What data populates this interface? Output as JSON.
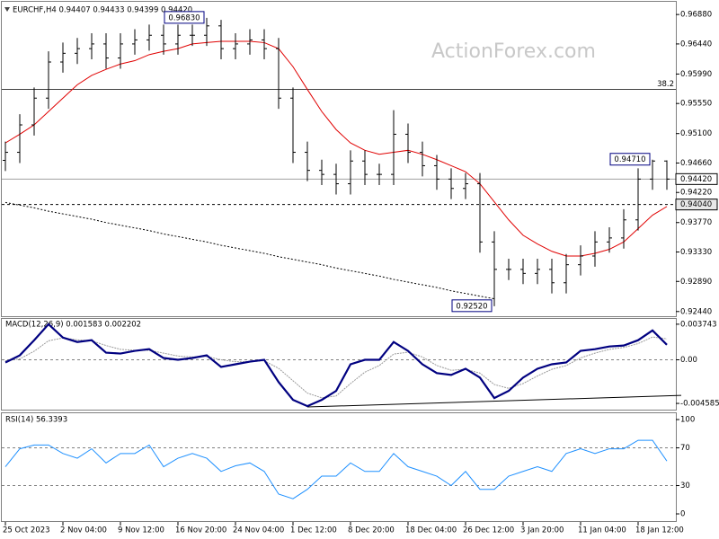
{
  "chart_data": [
    {
      "type": "ohlc",
      "title": "EURCHF,H4 0.94407 0.94433 0.94399 0.94420",
      "watermark": "ActionForex.com",
      "color": "#000000",
      "open": [
        0.947,
        0.9482,
        0.9523,
        0.9563,
        0.9617,
        0.963,
        0.9637,
        0.9644,
        0.9623,
        0.9644,
        0.965,
        0.9657,
        0.9644,
        0.9657,
        0.9657,
        0.9671,
        0.9637,
        0.9644,
        0.965,
        0.9637,
        0.9563,
        0.9482,
        0.9455,
        0.9449,
        0.9435,
        0.9469,
        0.9449,
        0.9449,
        0.9509,
        0.9482,
        0.9462,
        0.9442,
        0.9428,
        0.9435,
        0.9348,
        0.9307,
        0.9307,
        0.9301,
        0.9307,
        0.9287,
        0.9314,
        0.9327,
        0.9348,
        0.9354,
        0.9381,
        0.9442,
        0.9469
      ],
      "high": [
        0.9498,
        0.9539,
        0.9579,
        0.9633,
        0.9646,
        0.9653,
        0.966,
        0.966,
        0.966,
        0.9666,
        0.9673,
        0.9673,
        0.9673,
        0.9673,
        0.9683,
        0.968,
        0.966,
        0.9666,
        0.9666,
        0.9653,
        0.9579,
        0.9498,
        0.9471,
        0.9465,
        0.9485,
        0.9485,
        0.9465,
        0.9545,
        0.9525,
        0.9498,
        0.9478,
        0.9458,
        0.9451,
        0.9451,
        0.9364,
        0.9323,
        0.9323,
        0.9323,
        0.9323,
        0.933,
        0.9343,
        0.9364,
        0.937,
        0.9397,
        0.9458,
        0.9471,
        0.947
      ],
      "low": [
        0.9454,
        0.9466,
        0.9507,
        0.9547,
        0.9601,
        0.9614,
        0.9621,
        0.9607,
        0.9607,
        0.9628,
        0.9634,
        0.9628,
        0.9628,
        0.9641,
        0.9641,
        0.9621,
        0.9621,
        0.9628,
        0.9621,
        0.9547,
        0.9466,
        0.9439,
        0.9433,
        0.9419,
        0.9419,
        0.9433,
        0.9433,
        0.9433,
        0.9466,
        0.9446,
        0.9426,
        0.9412,
        0.9412,
        0.9332,
        0.9252,
        0.9291,
        0.9285,
        0.9285,
        0.9271,
        0.9271,
        0.9298,
        0.9311,
        0.9332,
        0.9338,
        0.9365,
        0.9426,
        0.9426
      ],
      "close": [
        0.9482,
        0.9523,
        0.9563,
        0.9617,
        0.963,
        0.9637,
        0.9644,
        0.9623,
        0.9644,
        0.965,
        0.9657,
        0.9644,
        0.9657,
        0.9657,
        0.9671,
        0.9637,
        0.9644,
        0.965,
        0.9637,
        0.9563,
        0.9482,
        0.9455,
        0.9449,
        0.9435,
        0.9469,
        0.9449,
        0.9449,
        0.9509,
        0.9482,
        0.9462,
        0.9442,
        0.9428,
        0.9435,
        0.9348,
        0.9307,
        0.9307,
        0.9301,
        0.9307,
        0.9287,
        0.9314,
        0.9327,
        0.9348,
        0.9354,
        0.9381,
        0.9442,
        0.9469,
        0.9442
      ],
      "lines": [
        {
          "color": "#e00000",
          "dashed": false,
          "values": [
            0.9496,
            0.9509,
            0.9523,
            0.9543,
            0.9563,
            0.9583,
            0.9597,
            0.9606,
            0.9614,
            0.9619,
            0.9628,
            0.9633,
            0.9637,
            0.9644,
            0.9646,
            0.9648,
            0.9648,
            0.9648,
            0.9646,
            0.9637,
            0.961,
            0.9576,
            0.9543,
            0.9516,
            0.9496,
            0.9485,
            0.9479,
            0.9482,
            0.9485,
            0.9479,
            0.9471,
            0.9462,
            0.9453,
            0.9435,
            0.9408,
            0.9381,
            0.9358,
            0.9345,
            0.9334,
            0.9327,
            0.9327,
            0.9331,
            0.9337,
            0.9348,
            0.9368,
            0.9388,
            0.9401
          ]
        },
        {
          "color": "#000000",
          "dashed": true,
          "values": [
            0.9407,
            0.9403,
            0.9399,
            0.9394,
            0.939,
            0.9386,
            0.9382,
            0.9377,
            0.9373,
            0.9369,
            0.9365,
            0.936,
            0.9356,
            0.9352,
            0.9348,
            0.9343,
            0.9339,
            0.9335,
            0.9331,
            0.9326,
            0.9322,
            0.9318,
            0.9314,
            0.9309,
            0.9305,
            0.9301,
            0.9297,
            0.9292,
            0.9288,
            0.9284,
            0.928,
            0.9275,
            0.9271,
            0.9267,
            0.9263,
            null,
            null,
            null,
            null,
            null,
            null,
            null,
            null,
            null,
            null,
            null,
            null
          ]
        }
      ],
      "ylim": [
        0.9237,
        0.9707
      ],
      "yticks": [
        {
          "value": 0.9688,
          "label": "0.96880"
        },
        {
          "value": 0.9644,
          "label": "0.96440"
        },
        {
          "value": 0.9599,
          "label": "0.95990"
        },
        {
          "value": 0.9555,
          "label": "0.95550"
        },
        {
          "value": 0.951,
          "label": "0.95100"
        },
        {
          "value": 0.9466,
          "label": "0.94660"
        },
        {
          "value": 0.9422,
          "label": "0.94220"
        },
        {
          "value": 0.9377,
          "label": "0.93770"
        },
        {
          "value": 0.9333,
          "label": "0.93330"
        },
        {
          "value": 0.9289,
          "label": "0.92890"
        },
        {
          "value": 0.9244,
          "label": "0.92440"
        }
      ],
      "levels": [
        {
          "value": 0.9576,
          "label": "38.2"
        }
      ],
      "price_markers": [
        {
          "value": 0.9442,
          "label": "0.94420",
          "dashed": false
        },
        {
          "value": 0.9404,
          "label": "0.94040",
          "dashed": true
        }
      ],
      "annotations": [
        {
          "x": 14,
          "value": 0.9683,
          "label": "0.96830"
        },
        {
          "x": 45,
          "value": 0.9471,
          "label": "0.94710"
        },
        {
          "x": 34,
          "value": 0.9252,
          "label": "0.92520"
        }
      ]
    },
    {
      "type": "macd",
      "title": "MACD(12,26,9) 0.001583 0.002202",
      "color": "#000080",
      "signal_color": "#9a9a9a",
      "values": [
        -0.00028,
        0.00047,
        0.00206,
        0.00374,
        0.00234,
        0.00187,
        0.00206,
        0.00075,
        0.00066,
        0.00094,
        0.00112,
        0.00019,
        0,
        0.00019,
        0.00047,
        -0.00075,
        -0.00047,
        -0.00019,
        0,
        -0.00234,
        -0.00421,
        -0.00487,
        -0.00421,
        -0.00327,
        -0.00047,
        0,
        0,
        0.00187,
        0.00094,
        -0.00047,
        -0.0014,
        -0.00159,
        -0.00094,
        -0.00187,
        -0.00402,
        -0.00327,
        -0.00187,
        -0.00094,
        -0.00047,
        -0.00028,
        0.00094,
        0.00112,
        0.0014,
        0.0015,
        0.00206,
        0.00309,
        0.00158
      ],
      "signal": [
        -0.0001,
        0.0001,
        0.0009,
        0.002,
        0.0023,
        0.0021,
        0.002,
        0.0015,
        0.0011,
        0.001,
        0.001,
        0.0007,
        0.0004,
        0.0003,
        0.00035,
        0,
        -0.0002,
        -0.0002,
        -0.0001,
        -0.0009,
        -0.0022,
        -0.0035,
        -0.004,
        -0.0038,
        -0.0025,
        -0.0013,
        -0.0006,
        0.0006,
        0.0008,
        0.0003,
        -0.0006,
        -0.0011,
        -0.001,
        -0.0014,
        -0.0026,
        -0.003,
        -0.0025,
        -0.0017,
        -0.001,
        -0.0006,
        0.0002,
        0.0007,
        0.0011,
        0.0013,
        0.0017,
        0.0024,
        0.0022
      ],
      "trendline": {
        "x": [
          21,
          47
        ],
        "values": [
          -0.00496,
          -0.00374
        ]
      },
      "dashed_levels": [
        0
      ],
      "ylim": [
        -0.00524,
        0.0043
      ],
      "yticks": [
        0.003743,
        {
          "value": 0,
          "label": "0.00"
        },
        -0.004585
      ]
    },
    {
      "type": "line",
      "title": "RSI(14) 56.3393",
      "color": "#1e90ff",
      "values": [
        50,
        69,
        73,
        73,
        64,
        59,
        69,
        54,
        64,
        64,
        73,
        50,
        59,
        64,
        59,
        45,
        51,
        54,
        45,
        21,
        16,
        26,
        40,
        40,
        54,
        45,
        45,
        64,
        50,
        45,
        40,
        30,
        45,
        26,
        26,
        40,
        45,
        50,
        45,
        64,
        69,
        64,
        69,
        69,
        78,
        78,
        56
      ],
      "dashed_levels": [
        30,
        70
      ],
      "ylim": [
        -7.6,
        106.7
      ],
      "yticks": [
        100,
        70,
        30,
        0
      ],
      "categories": [
        "25 Oct 2023",
        null,
        null,
        null,
        "2 Nov 04:00",
        null,
        null,
        null,
        "9 Nov 12:00",
        null,
        null,
        null,
        "16 Nov 20:00",
        null,
        null,
        null,
        "24 Nov 04:00",
        null,
        null,
        null,
        "1 Dec 12:00",
        null,
        null,
        null,
        "8 Dec 20:00",
        null,
        null,
        null,
        "18 Dec 04:00",
        null,
        null,
        null,
        "26 Dec 12:00",
        null,
        null,
        null,
        "3 Jan 20:00",
        null,
        null,
        null,
        "11 Jan 04:00",
        null,
        null,
        null,
        "18 Jan 12:00",
        null,
        null
      ]
    }
  ]
}
